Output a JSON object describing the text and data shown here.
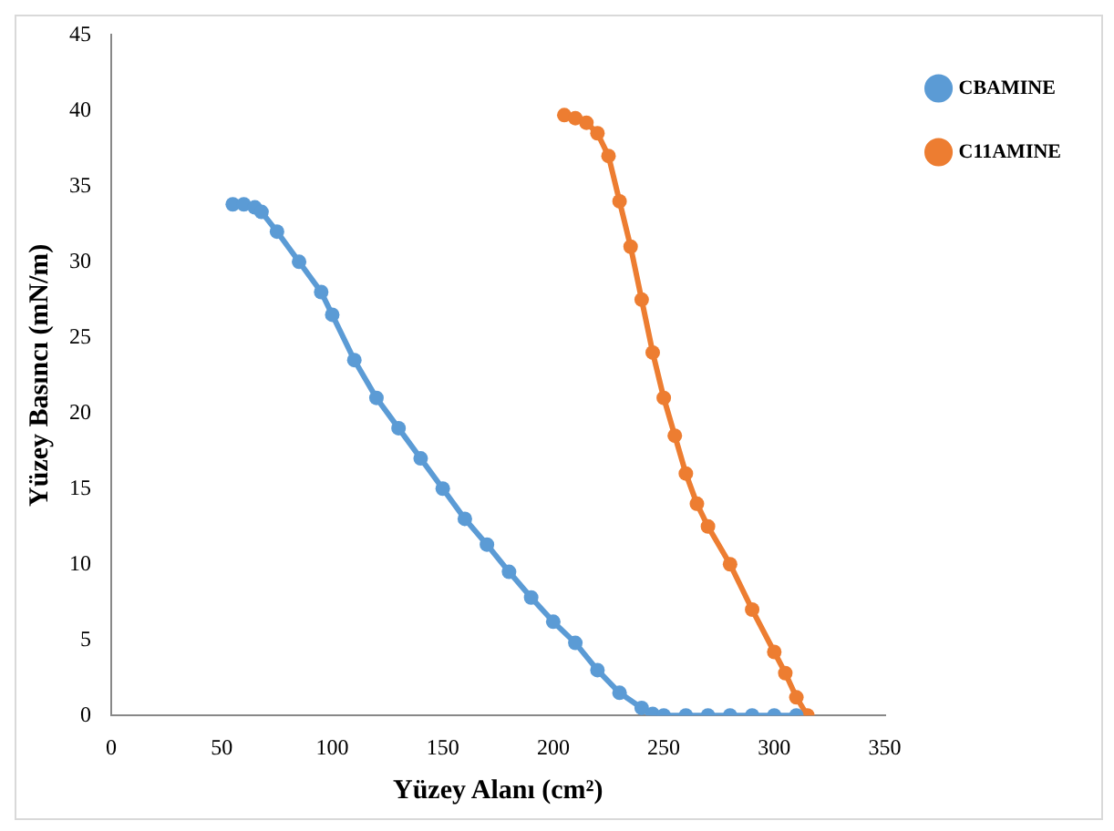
{
  "chart_data": {
    "type": "line",
    "xlabel": "Yüzey Alanı (cm²)",
    "ylabel": "Yüzey Basıncı (mN/m)",
    "xlim": [
      0,
      350
    ],
    "xticks": [
      0,
      50,
      100,
      150,
      200,
      250,
      300,
      350
    ],
    "ylim": [
      0,
      45
    ],
    "yticks": [
      0,
      5,
      10,
      15,
      20,
      25,
      30,
      35,
      40,
      45
    ],
    "grid": false,
    "legend": "top right",
    "marker": "circle",
    "line_style": "solid",
    "series": [
      {
        "name": "CBAMINE",
        "color": "#5b9bd5",
        "x": [
          55,
          60,
          65,
          68,
          75,
          85,
          95,
          100,
          110,
          120,
          130,
          140,
          150,
          160,
          170,
          180,
          190,
          200,
          210,
          220,
          230,
          240,
          245,
          250,
          260,
          270,
          280,
          290,
          300,
          310
        ],
        "values": [
          33.8,
          33.8,
          33.6,
          33.3,
          32,
          30,
          28,
          26.5,
          23.5,
          21,
          19,
          17,
          15,
          13,
          11.3,
          9.5,
          7.8,
          6.2,
          4.8,
          3,
          1.5,
          0.5,
          0.1,
          0,
          0,
          0,
          0,
          0,
          0,
          0
        ]
      },
      {
        "name": "C11AMINE",
        "color": "#ed7d31",
        "x": [
          205,
          210,
          215,
          220,
          225,
          230,
          235,
          240,
          245,
          250,
          255,
          260,
          265,
          270,
          280,
          290,
          300,
          305,
          310,
          315
        ],
        "values": [
          39.7,
          39.5,
          39.2,
          38.5,
          37,
          34,
          31,
          27.5,
          24,
          21,
          18.5,
          16,
          14,
          12.5,
          10,
          7,
          4.2,
          2.8,
          1.2,
          0
        ]
      }
    ]
  }
}
